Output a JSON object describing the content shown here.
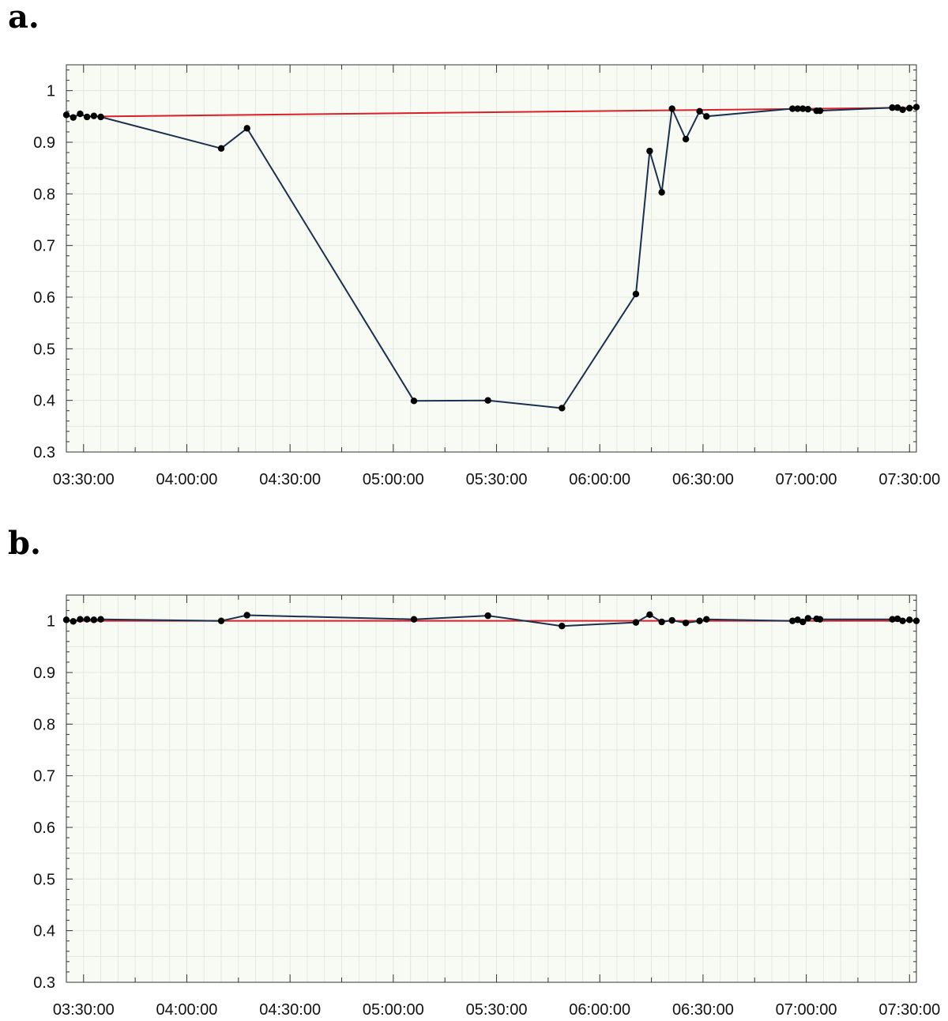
{
  "panels": [
    {
      "label": "a."
    },
    {
      "label": "b."
    }
  ],
  "colors": {
    "plot_background": "#f7fbf4",
    "grid": "#e4e8e2",
    "series_line": "#1b2f4e",
    "reference_line": "#d9202a",
    "marker": "#000000"
  },
  "chart_data": [
    {
      "type": "line",
      "title": "",
      "xlabel": "",
      "ylabel": "",
      "xlim": [
        "03:25:00",
        "07:32:00"
      ],
      "ylim": [
        0.3,
        1.05
      ],
      "x_ticks": [
        "03:30:00",
        "04:00:00",
        "04:30:00",
        "05:00:00",
        "05:30:00",
        "06:00:00",
        "06:30:00",
        "07:00:00",
        "07:30:00"
      ],
      "y_ticks": [
        "0.3",
        "0.4",
        "0.5",
        "0.6",
        "0.7",
        "0.8",
        "0.9",
        "1"
      ],
      "grid": true,
      "series": [
        {
          "kind": "line+markers",
          "x": [
            "03:25:00",
            "03:27:00",
            "03:29:00",
            "03:31:00",
            "03:33:00",
            "03:35:00",
            "04:10:00",
            "04:17:30",
            "05:06:00",
            "05:27:30",
            "05:49:00",
            "06:10:30",
            "06:14:30",
            "06:18:00",
            "06:21:00",
            "06:25:00",
            "06:29:00",
            "06:31:00",
            "06:56:00",
            "06:57:30",
            "06:59:00",
            "07:00:30",
            "07:03:00",
            "07:04:00",
            "07:25:00",
            "07:26:30",
            "07:28:00",
            "07:30:00",
            "07:32:00"
          ],
          "y": [
            0.953,
            0.948,
            0.955,
            0.949,
            0.951,
            0.949,
            0.888,
            0.927,
            0.399,
            0.4,
            0.385,
            0.606,
            0.883,
            0.803,
            0.965,
            0.906,
            0.96,
            0.95,
            0.965,
            0.965,
            0.965,
            0.964,
            0.961,
            0.961,
            0.967,
            0.967,
            0.963,
            0.966,
            0.968
          ]
        },
        {
          "kind": "reference-line",
          "x": [
            "03:35:00",
            "07:32:00"
          ],
          "y": [
            0.95,
            0.967
          ]
        }
      ]
    },
    {
      "type": "line",
      "title": "",
      "xlabel": "",
      "ylabel": "",
      "xlim": [
        "03:25:00",
        "07:32:00"
      ],
      "ylim": [
        0.3,
        1.05
      ],
      "x_ticks": [
        "03:30:00",
        "04:00:00",
        "04:30:00",
        "05:00:00",
        "05:30:00",
        "06:00:00",
        "06:30:00",
        "07:00:00",
        "07:30:00"
      ],
      "y_ticks": [
        "0.3",
        "0.4",
        "0.5",
        "0.6",
        "0.7",
        "0.8",
        "0.9",
        "1"
      ],
      "grid": true,
      "series": [
        {
          "kind": "line+markers",
          "x": [
            "03:25:00",
            "03:27:00",
            "03:29:00",
            "03:31:00",
            "03:33:00",
            "03:35:00",
            "04:10:00",
            "04:17:30",
            "05:06:00",
            "05:27:30",
            "05:49:00",
            "06:10:30",
            "06:14:30",
            "06:18:00",
            "06:21:00",
            "06:25:00",
            "06:29:00",
            "06:31:00",
            "06:56:00",
            "06:57:30",
            "06:59:00",
            "07:00:30",
            "07:03:00",
            "07:04:00",
            "07:25:00",
            "07:26:30",
            "07:28:00",
            "07:30:00",
            "07:32:00"
          ],
          "y": [
            1.002,
            0.999,
            1.003,
            1.003,
            1.002,
            1.003,
            1.0,
            1.011,
            1.003,
            1.01,
            0.99,
            0.997,
            1.012,
            0.998,
            1.001,
            0.996,
            1.0,
            1.003,
            1.0,
            1.002,
            0.998,
            1.005,
            1.004,
            1.003,
            1.003,
            1.004,
            1.0,
            1.002,
            1.0
          ]
        },
        {
          "kind": "reference-line",
          "x": [
            "03:25:00",
            "07:32:00"
          ],
          "y": [
            1.0,
            1.0
          ]
        }
      ]
    }
  ]
}
